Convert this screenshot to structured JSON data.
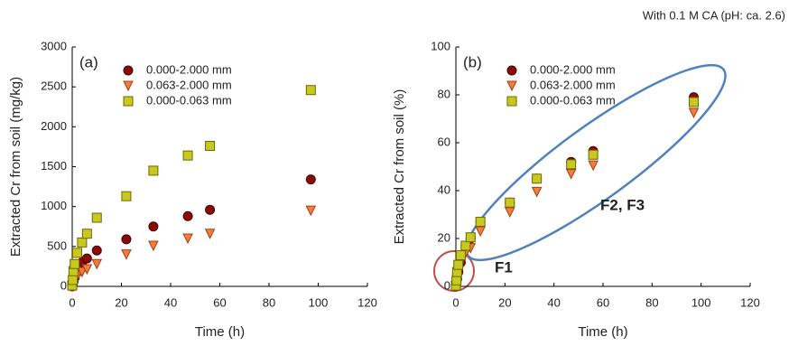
{
  "note": "With 0.1 M CA (pH: ca. 2.6)",
  "chart_data": [
    {
      "type": "scatter",
      "panel": "(a)",
      "x_label": "Time (h)",
      "y_label": "Extracted Cr from soil (mg/kg)",
      "x": [
        0,
        0.25,
        0.5,
        1,
        2,
        4,
        6,
        10,
        22,
        33,
        47,
        56,
        97
      ],
      "xlim": [
        0,
        120
      ],
      "xticks": [
        0,
        20,
        40,
        60,
        80,
        100,
        120
      ],
      "ylim": [
        0,
        3000
      ],
      "yticks": [
        0,
        500,
        1000,
        1500,
        2000,
        2500,
        3000
      ],
      "series": [
        {
          "name": "0.000-2.000 mm",
          "color": "#8b0a0a",
          "marker": "circle",
          "values": [
            0,
            30,
            60,
            110,
            180,
            300,
            350,
            450,
            590,
            750,
            880,
            960,
            1340
          ]
        },
        {
          "name": "0.063-2.000 mm",
          "color": "#f47c3c",
          "marker": "triangle",
          "values": [
            0,
            20,
            40,
            80,
            130,
            180,
            215,
            280,
            400,
            510,
            600,
            660,
            950
          ]
        },
        {
          "name": "0.000-0.063 mm",
          "color": "#c8c81e",
          "marker": "square",
          "values": [
            10,
            80,
            190,
            280,
            420,
            550,
            660,
            860,
            1130,
            1450,
            1640,
            1760,
            2460
          ]
        }
      ]
    },
    {
      "type": "scatter",
      "panel": "(b)",
      "x_label": "Time (h)",
      "y_label": "Extracted Cr from soil (%)",
      "annotations": [
        "F1",
        "F2, F3"
      ],
      "x": [
        0,
        0.25,
        0.5,
        1,
        2,
        4,
        6,
        10,
        22,
        33,
        47,
        56,
        97
      ],
      "xlim": [
        0,
        120
      ],
      "xticks": [
        0,
        20,
        40,
        60,
        80,
        100,
        120
      ],
      "ylim": [
        0,
        100
      ],
      "yticks": [
        0,
        20,
        40,
        60,
        80,
        100
      ],
      "series": [
        {
          "name": "0.000-2.000 mm",
          "color": "#8b0a0a",
          "marker": "circle",
          "values": [
            0,
            1.5,
            3,
            6,
            10,
            17,
            20,
            27,
            35,
            45,
            52,
            56.5,
            79
          ]
        },
        {
          "name": "0.063-2.000 mm",
          "color": "#f47c3c",
          "marker": "triangle",
          "values": [
            0,
            1.5,
            3,
            6,
            10,
            14,
            16,
            23,
            31,
            39.5,
            47,
            50.5,
            72.5
          ]
        },
        {
          "name": "0.000-0.063 mm",
          "color": "#c8c81e",
          "marker": "square",
          "values": [
            0.3,
            2.5,
            6,
            9,
            13,
            17,
            20.5,
            27,
            35,
            45,
            51,
            55,
            77
          ]
        }
      ]
    }
  ]
}
